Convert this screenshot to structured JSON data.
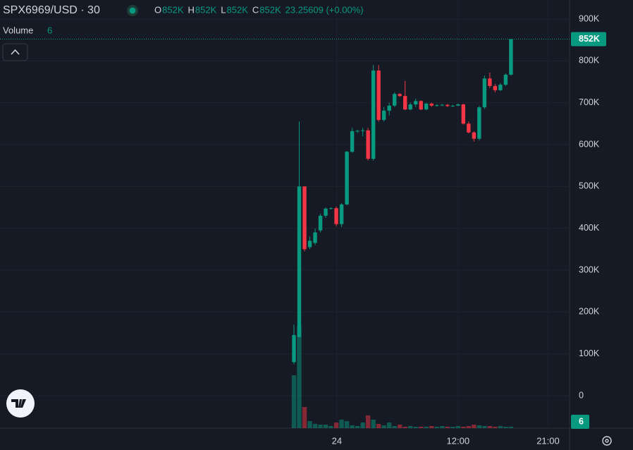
{
  "chart_data": {
    "type": "candlestick",
    "title": "SPX6969/USD · 30",
    "ohlc_legend": [
      {
        "key": "O",
        "value": "852K"
      },
      {
        "key": "H",
        "value": "852K"
      },
      {
        "key": "L",
        "value": "852K"
      },
      {
        "key": "C",
        "value": "852K"
      }
    ],
    "change": "23.25609 (+0.00%)",
    "volume_title": "Volume",
    "volume_value": 6,
    "up_color": "#089981",
    "down_color": "#f23645",
    "open": [
      80000,
      140000,
      500000,
      355000,
      365000,
      395000,
      430000,
      447000,
      448000,
      410000,
      457000,
      583000,
      632000,
      633000,
      634000,
      566000,
      777000,
      659000,
      681000,
      693000,
      721000,
      716000,
      684000,
      696000,
      704000,
      684000,
      698000,
      693000,
      694000,
      695000,
      692000,
      693000,
      696000,
      650000,
      629000,
      614000,
      689000,
      758000,
      740000,
      730000,
      743000,
      767000
    ],
    "high": [
      170000,
      655000,
      500000,
      380000,
      400000,
      435000,
      450000,
      450000,
      452000,
      460000,
      585000,
      640000,
      635000,
      640000,
      640000,
      790000,
      790000,
      690000,
      700000,
      725000,
      723000,
      752000,
      700000,
      710000,
      706000,
      700000,
      700000,
      697000,
      697000,
      697000,
      695000,
      698000,
      698000,
      655000,
      632000,
      692000,
      765000,
      772000,
      745000,
      747000,
      770000,
      852000
    ],
    "low": [
      75000,
      140000,
      345000,
      350000,
      360000,
      390000,
      425000,
      445000,
      405000,
      403000,
      455000,
      580000,
      628000,
      620000,
      562000,
      562000,
      655000,
      655000,
      670000,
      690000,
      714000,
      682000,
      682000,
      690000,
      682000,
      682000,
      690000,
      691000,
      692000,
      690000,
      690000,
      692000,
      648000,
      627000,
      607000,
      610000,
      685000,
      735000,
      725000,
      728000,
      740000,
      765000
    ],
    "close": [
      145000,
      500000,
      350000,
      370000,
      390000,
      430000,
      447000,
      448000,
      410000,
      457000,
      583000,
      632000,
      633000,
      634000,
      566000,
      777000,
      659000,
      681000,
      693000,
      721000,
      716000,
      684000,
      696000,
      704000,
      684000,
      698000,
      693000,
      694000,
      695000,
      692000,
      693000,
      696000,
      650000,
      629000,
      614000,
      689000,
      758000,
      740000,
      730000,
      743000,
      767000,
      852000
    ],
    "volume": [
      225,
      435,
      90,
      30,
      18,
      15,
      15,
      9,
      24,
      36,
      30,
      12,
      9,
      24,
      54,
      36,
      18,
      12,
      24,
      9,
      15,
      6,
      9,
      6,
      6,
      6,
      9,
      6,
      9,
      6,
      6,
      9,
      6,
      9,
      15,
      12,
      9,
      9,
      6,
      9,
      6,
      6
    ],
    "ylim": [
      -75000,
      920000
    ],
    "yticks": [
      0,
      {
        "value": 100000,
        "label": "100K"
      },
      {
        "value": 200000,
        "label": "200K"
      },
      {
        "value": 300000,
        "label": "300K"
      },
      {
        "value": 400000,
        "label": "400K"
      },
      {
        "value": 500000,
        "label": "500K"
      },
      {
        "value": 600000,
        "label": "600K"
      },
      {
        "value": 700000,
        "label": "700K"
      },
      {
        "value": 800000,
        "label": "800K"
      },
      {
        "value": 900000,
        "label": "900K"
      }
    ],
    "last_price": {
      "value": 852000,
      "label": "852K"
    },
    "xticks": [
      {
        "value": 8.1,
        "label": "24"
      },
      {
        "value": 31,
        "label": "12:00"
      },
      {
        "value": 48,
        "label": "21:00"
      }
    ],
    "grid": true
  }
}
